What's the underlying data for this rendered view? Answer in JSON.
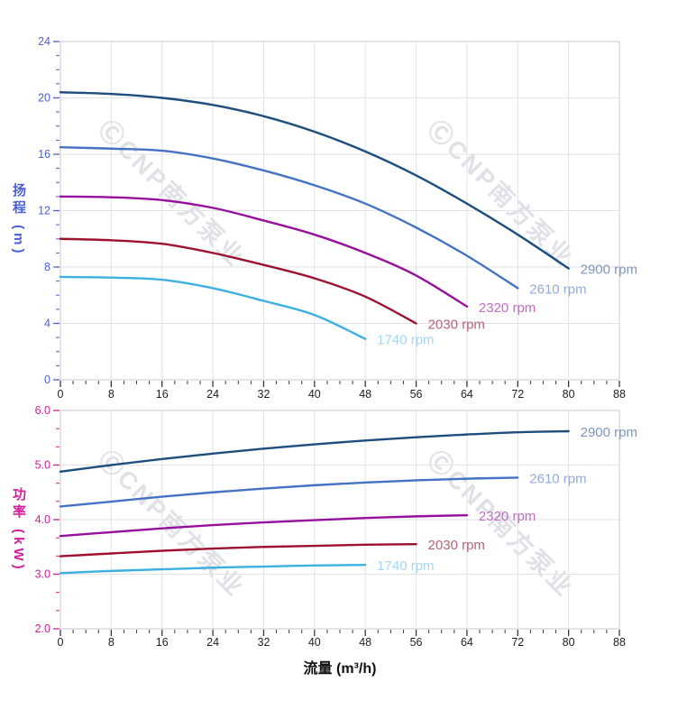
{
  "watermark": {
    "text": "ⒸCNP南方泵业",
    "color": "#b4b8c4"
  },
  "x_axis": {
    "title": "流量 (m³/h)",
    "tick_label_color": "#1f1f1f",
    "tick_mark_color": "#3a3a3a"
  },
  "style_colors": {
    "gridline": "#e2e2e6",
    "plot_border": "#c9c9d0",
    "background": "#ffffff"
  },
  "chart_data": [
    {
      "type": "line",
      "name": "head",
      "y_title": "扬程 (m)",
      "xlabel": "流量 (m³/h)",
      "axis_color": "#4a5fd8",
      "x_range": [
        0,
        88
      ],
      "y_range": [
        0,
        24
      ],
      "x_major": 8,
      "x_minor": 2,
      "y_major": 4,
      "y_minor": 1,
      "y_decimals": 0,
      "grid": true,
      "legend_position": "end-of-line",
      "x_ticks": [
        0,
        8,
        16,
        24,
        32,
        40,
        48,
        56,
        64,
        72,
        80,
        88
      ],
      "y_ticks": [
        0,
        4,
        8,
        12,
        16,
        20,
        24
      ],
      "series": [
        {
          "name": "2900 rpm",
          "rpm": 2900,
          "color": "#1d4e7d",
          "label_color": "#7e95bc",
          "x": [
            0,
            8,
            16,
            24,
            32,
            40,
            48,
            56,
            64,
            72,
            80
          ],
          "y": [
            20.4,
            20.28,
            20.0,
            19.5,
            18.7,
            17.6,
            16.2,
            14.5,
            12.5,
            10.3,
            7.9
          ]
        },
        {
          "name": "2610 rpm",
          "rpm": 2610,
          "color": "#4472c4",
          "label_color": "#92a9da",
          "x": [
            0,
            8,
            16,
            24,
            32,
            40,
            48,
            56,
            64,
            72
          ],
          "y": [
            16.5,
            16.4,
            16.25,
            15.7,
            14.85,
            13.8,
            12.5,
            10.8,
            8.8,
            6.5
          ]
        },
        {
          "name": "2320 rpm",
          "rpm": 2320,
          "color": "#97109b",
          "label_color": "#bf6ec1",
          "x": [
            0,
            8,
            16,
            24,
            32,
            40,
            48,
            56,
            64
          ],
          "y": [
            13.0,
            12.95,
            12.75,
            12.2,
            11.3,
            10.3,
            9.0,
            7.4,
            5.2
          ]
        },
        {
          "name": "2030 rpm",
          "rpm": 2030,
          "color": "#9e1230",
          "label_color": "#b56577",
          "x": [
            0,
            8,
            16,
            24,
            32,
            40,
            48,
            56
          ],
          "y": [
            10.0,
            9.9,
            9.65,
            9.0,
            8.15,
            7.2,
            5.9,
            4.0
          ]
        },
        {
          "name": "1740 rpm",
          "rpm": 1740,
          "color": "#3cb0e0",
          "label_color": "#a4d6f1",
          "x": [
            0,
            8,
            16,
            24,
            32,
            40,
            48
          ],
          "y": [
            7.3,
            7.25,
            7.1,
            6.5,
            5.6,
            4.6,
            2.9
          ]
        }
      ]
    },
    {
      "type": "line",
      "name": "power",
      "y_title": "功率 (kW)",
      "xlabel": "流量 (m³/h)",
      "axis_color": "#d0219a",
      "x_range": [
        0,
        88
      ],
      "y_range": [
        2.0,
        6.0
      ],
      "x_major": 8,
      "x_minor": 2,
      "y_major": 1,
      "y_minor": 0.3333333,
      "y_decimals": 1,
      "grid": true,
      "legend_position": "end-of-line",
      "x_ticks": [
        0,
        8,
        16,
        24,
        32,
        40,
        48,
        56,
        64,
        72,
        80,
        88
      ],
      "y_ticks": [
        2.0,
        3.0,
        4.0,
        5.0,
        6.0
      ],
      "series": [
        {
          "name": "2900 rpm",
          "rpm": 2900,
          "color": "#1d4e7d",
          "label_color": "#7e95bc",
          "x": [
            0,
            8,
            16,
            24,
            32,
            40,
            48,
            56,
            64,
            72,
            80
          ],
          "y": [
            4.88,
            5.0,
            5.11,
            5.21,
            5.3,
            5.38,
            5.45,
            5.51,
            5.56,
            5.6,
            5.62
          ]
        },
        {
          "name": "2610 rpm",
          "rpm": 2610,
          "color": "#4472c4",
          "label_color": "#92a9da",
          "x": [
            0,
            8,
            16,
            24,
            32,
            40,
            48,
            56,
            64,
            72
          ],
          "y": [
            4.24,
            4.33,
            4.42,
            4.5,
            4.57,
            4.63,
            4.68,
            4.72,
            4.75,
            4.77
          ]
        },
        {
          "name": "2320 rpm",
          "rpm": 2320,
          "color": "#97109b",
          "label_color": "#bf6ec1",
          "x": [
            0,
            8,
            16,
            24,
            32,
            40,
            48,
            56,
            64
          ],
          "y": [
            3.7,
            3.77,
            3.84,
            3.9,
            3.95,
            3.99,
            4.03,
            4.06,
            4.08
          ]
        },
        {
          "name": "2030 rpm",
          "rpm": 2030,
          "color": "#9e1230",
          "label_color": "#b56577",
          "x": [
            0,
            8,
            16,
            24,
            32,
            40,
            48,
            56
          ],
          "y": [
            3.33,
            3.38,
            3.43,
            3.47,
            3.5,
            3.52,
            3.54,
            3.55
          ]
        },
        {
          "name": "1740 rpm",
          "rpm": 1740,
          "color": "#3cb0e0",
          "label_color": "#a4d6f1",
          "x": [
            0,
            8,
            16,
            24,
            32,
            40,
            48
          ],
          "y": [
            3.02,
            3.06,
            3.09,
            3.12,
            3.14,
            3.16,
            3.17
          ]
        }
      ]
    }
  ]
}
